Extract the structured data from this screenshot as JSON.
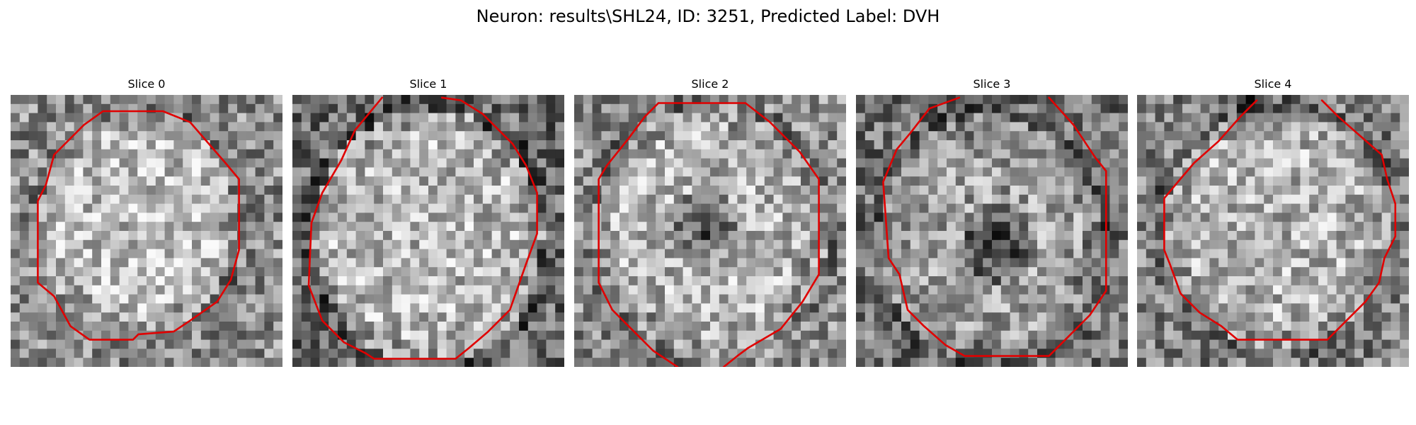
{
  "figure": {
    "title": "Neuron: results\\SHL24, ID: 3251, Predicted Label: DVH",
    "contour_color": "#e00000",
    "colormap": "gray",
    "grid_size": 30
  },
  "panels": [
    {
      "title": "Slice 0"
    },
    {
      "title": "Slice 1"
    },
    {
      "title": "Slice 2"
    },
    {
      "title": "Slice 3"
    },
    {
      "title": "Slice 4"
    }
  ]
}
